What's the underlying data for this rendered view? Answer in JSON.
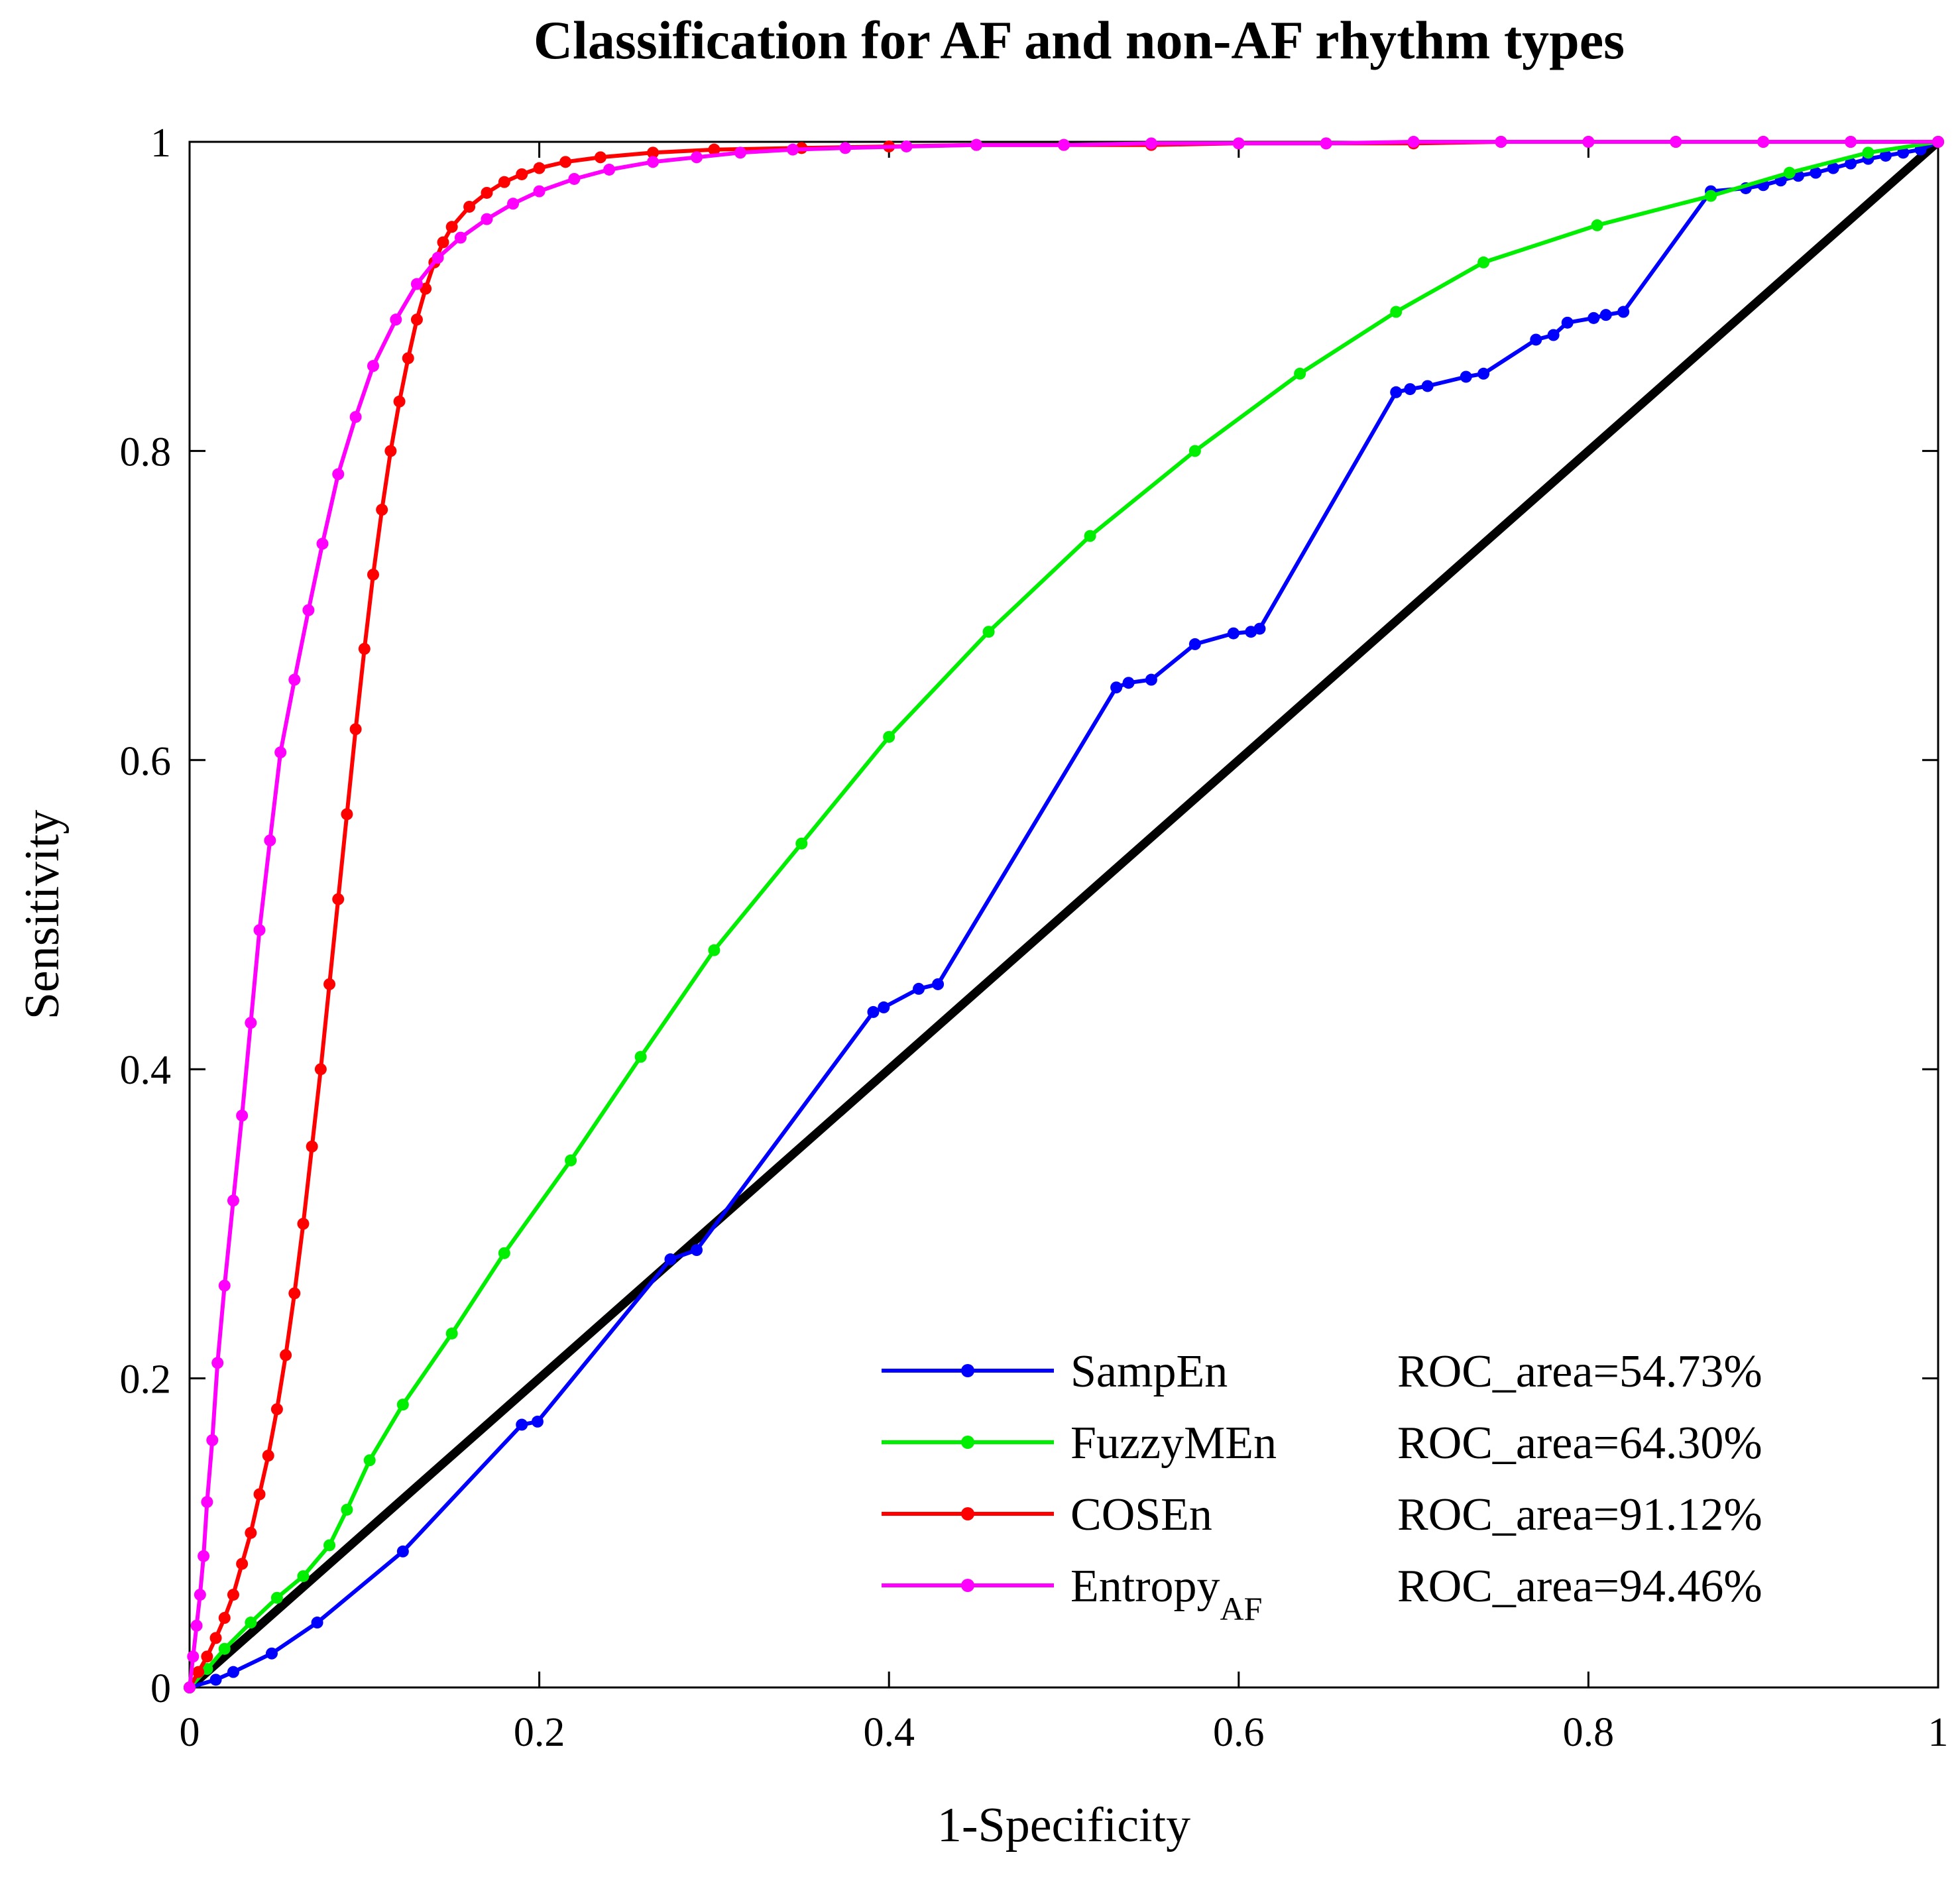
{
  "chart_data": {
    "type": "line",
    "title": "Classification for AF and non-AF rhythm types",
    "xlabel": "1-Specificity",
    "ylabel": "Sensitivity",
    "xlim": [
      0,
      1
    ],
    "ylim": [
      0,
      1
    ],
    "xticks": [
      "0",
      "0.2",
      "0.4",
      "0.6",
      "0.8",
      "1"
    ],
    "yticks": [
      "0",
      "0.2",
      "0.4",
      "0.6",
      "0.8",
      "1"
    ],
    "grid": false,
    "legend_position": "bottom-right",
    "reference_line": {
      "x": [
        0,
        1
      ],
      "y": [
        0,
        1
      ],
      "color": "#000000"
    },
    "series": [
      {
        "name": "SampEn",
        "sub": "",
        "auc_label": "ROC_area=54.73%",
        "color": "#0000ff",
        "x": [
          0,
          0.015,
          0.025,
          0.047,
          0.073,
          0.122,
          0.19,
          0.199,
          0.275,
          0.29,
          0.391,
          0.397,
          0.417,
          0.428,
          0.53,
          0.537,
          0.55,
          0.575,
          0.597,
          0.607,
          0.612,
          0.69,
          0.698,
          0.708,
          0.73,
          0.74,
          0.77,
          0.78,
          0.788,
          0.803,
          0.81,
          0.82,
          0.87,
          0.89,
          0.9,
          0.91,
          0.92,
          0.93,
          0.94,
          0.95,
          0.96,
          0.97,
          0.98,
          0.99,
          1.0
        ],
        "y": [
          0,
          0.005,
          0.01,
          0.022,
          0.042,
          0.088,
          0.17,
          0.172,
          0.277,
          0.283,
          0.437,
          0.44,
          0.452,
          0.455,
          0.647,
          0.65,
          0.652,
          0.675,
          0.682,
          0.683,
          0.685,
          0.838,
          0.84,
          0.842,
          0.848,
          0.85,
          0.872,
          0.875,
          0.883,
          0.886,
          0.888,
          0.89,
          0.968,
          0.97,
          0.972,
          0.975,
          0.978,
          0.98,
          0.983,
          0.986,
          0.989,
          0.991,
          0.993,
          0.995,
          1.0
        ]
      },
      {
        "name": "FuzzyMEn",
        "sub": "",
        "auc_label": "ROC_area=64.30%",
        "color": "#00ee00",
        "x": [
          0,
          0.01,
          0.02,
          0.035,
          0.05,
          0.065,
          0.08,
          0.09,
          0.103,
          0.122,
          0.15,
          0.18,
          0.218,
          0.258,
          0.3,
          0.35,
          0.4,
          0.457,
          0.515,
          0.575,
          0.635,
          0.69,
          0.74,
          0.805,
          0.87,
          0.915,
          0.96,
          1.0
        ],
        "y": [
          0,
          0.012,
          0.025,
          0.042,
          0.058,
          0.072,
          0.092,
          0.115,
          0.147,
          0.183,
          0.229,
          0.281,
          0.341,
          0.408,
          0.477,
          0.546,
          0.615,
          0.683,
          0.745,
          0.8,
          0.85,
          0.89,
          0.922,
          0.946,
          0.965,
          0.98,
          0.993,
          1.0
        ]
      },
      {
        "name": "COSEn",
        "sub": "",
        "auc_label": "ROC_area=91.12%",
        "color": "#ff0000",
        "x": [
          0,
          0.005,
          0.01,
          0.015,
          0.02,
          0.025,
          0.03,
          0.035,
          0.04,
          0.045,
          0.05,
          0.055,
          0.06,
          0.065,
          0.07,
          0.075,
          0.08,
          0.085,
          0.09,
          0.095,
          0.1,
          0.105,
          0.11,
          0.115,
          0.12,
          0.125,
          0.13,
          0.135,
          0.14,
          0.145,
          0.15,
          0.16,
          0.17,
          0.18,
          0.19,
          0.2,
          0.215,
          0.235,
          0.265,
          0.3,
          0.35,
          0.4,
          0.45,
          0.5,
          0.55,
          0.6,
          0.65,
          0.7,
          0.75,
          0.8,
          0.85,
          0.9,
          0.95,
          1.0
        ],
        "y": [
          0,
          0.01,
          0.02,
          0.032,
          0.045,
          0.06,
          0.08,
          0.1,
          0.125,
          0.15,
          0.18,
          0.215,
          0.255,
          0.3,
          0.35,
          0.4,
          0.455,
          0.51,
          0.565,
          0.62,
          0.672,
          0.72,
          0.762,
          0.8,
          0.832,
          0.86,
          0.885,
          0.905,
          0.922,
          0.935,
          0.945,
          0.958,
          0.967,
          0.974,
          0.979,
          0.983,
          0.987,
          0.99,
          0.993,
          0.995,
          0.996,
          0.997,
          0.998,
          0.998,
          0.998,
          0.999,
          0.999,
          0.999,
          1.0,
          1.0,
          1.0,
          1.0,
          1.0,
          1.0
        ]
      },
      {
        "name": "Entropy",
        "sub": "AF",
        "auc_label": "ROC_area=94.46%",
        "color": "#ff00ff",
        "x": [
          0,
          0.002,
          0.004,
          0.006,
          0.008,
          0.01,
          0.013,
          0.016,
          0.02,
          0.025,
          0.03,
          0.035,
          0.04,
          0.046,
          0.052,
          0.06,
          0.068,
          0.076,
          0.085,
          0.095,
          0.105,
          0.118,
          0.13,
          0.142,
          0.155,
          0.17,
          0.185,
          0.2,
          0.22,
          0.24,
          0.265,
          0.29,
          0.315,
          0.345,
          0.375,
          0.41,
          0.45,
          0.5,
          0.55,
          0.6,
          0.65,
          0.7,
          0.75,
          0.8,
          0.85,
          0.9,
          0.95,
          1.0
        ],
        "y": [
          0,
          0.02,
          0.04,
          0.06,
          0.085,
          0.12,
          0.16,
          0.21,
          0.26,
          0.315,
          0.37,
          0.43,
          0.49,
          0.548,
          0.605,
          0.652,
          0.697,
          0.74,
          0.785,
          0.822,
          0.855,
          0.885,
          0.908,
          0.925,
          0.938,
          0.95,
          0.96,
          0.968,
          0.976,
          0.982,
          0.987,
          0.99,
          0.993,
          0.995,
          0.996,
          0.997,
          0.998,
          0.998,
          0.999,
          0.999,
          0.999,
          1.0,
          1.0,
          1.0,
          1.0,
          1.0,
          1.0,
          1.0
        ]
      }
    ]
  }
}
